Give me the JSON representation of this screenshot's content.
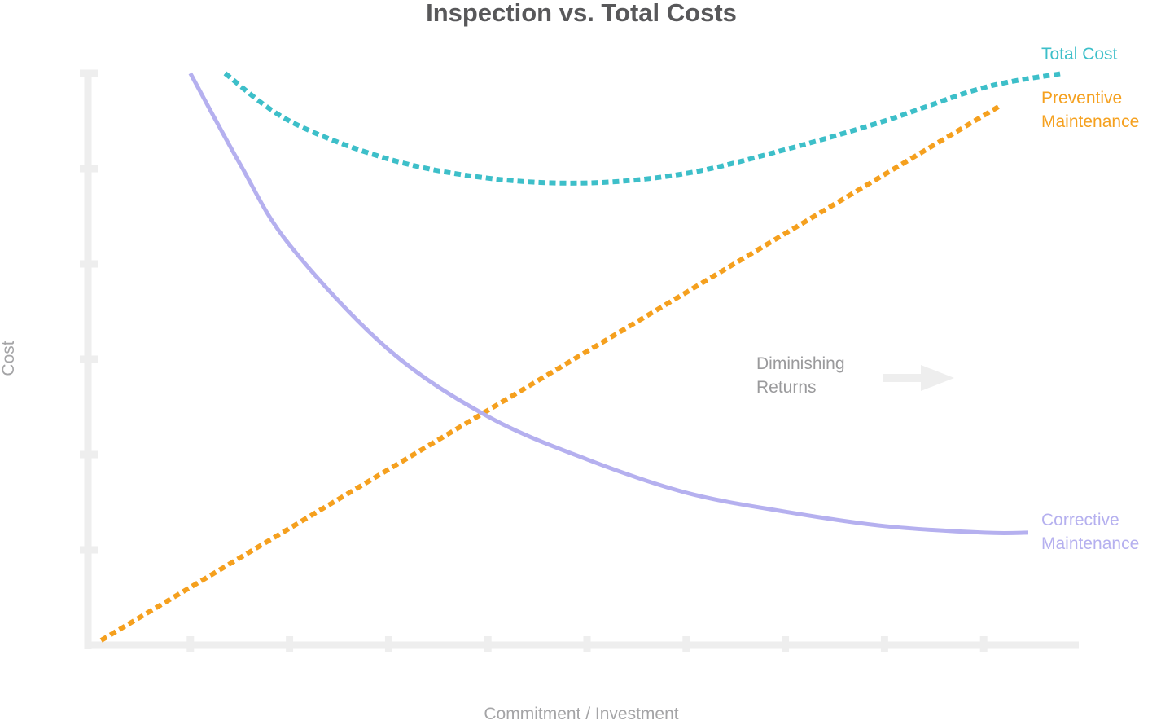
{
  "chart_data": {
    "type": "line",
    "title": "Inspection vs. Total Costs",
    "xlabel": "Commitment / Investment",
    "ylabel": "Cost",
    "xlim": [
      0,
      10
    ],
    "ylim": [
      0,
      6
    ],
    "grid": false,
    "series": [
      {
        "name": "Total Cost",
        "label_lines": [
          "Total Cost"
        ],
        "color": "#3dbfc9",
        "style": "dotted",
        "x": [
          1.35,
          2.0,
          3.0,
          4.0,
          5.0,
          6.0,
          7.0,
          8.0,
          9.0,
          9.8
        ],
        "y": [
          6.0,
          5.5,
          5.1,
          4.9,
          4.85,
          4.95,
          5.2,
          5.5,
          5.85,
          6.0
        ]
      },
      {
        "name": "Preventive Maintenance",
        "label_lines": [
          "Preventive",
          "Maintenance"
        ],
        "color": "#f5a01e",
        "style": "dotted",
        "x": [
          0.1,
          9.15
        ],
        "y": [
          0.05,
          5.65
        ]
      },
      {
        "name": "Corrective Maintenance",
        "label_lines": [
          "Corrective",
          "Maintenance"
        ],
        "color": "#b5b0ef",
        "style": "solid",
        "x": [
          1.0,
          1.5,
          2.0,
          3.0,
          4.0,
          5.0,
          6.0,
          7.0,
          8.0,
          9.0,
          9.45
        ],
        "y": [
          6.0,
          5.05,
          4.2,
          3.1,
          2.4,
          1.95,
          1.6,
          1.4,
          1.25,
          1.18,
          1.18
        ]
      }
    ],
    "annotations": [
      {
        "text_lines": [
          "Diminishing",
          "Returns"
        ],
        "arrow": "right"
      }
    ]
  }
}
